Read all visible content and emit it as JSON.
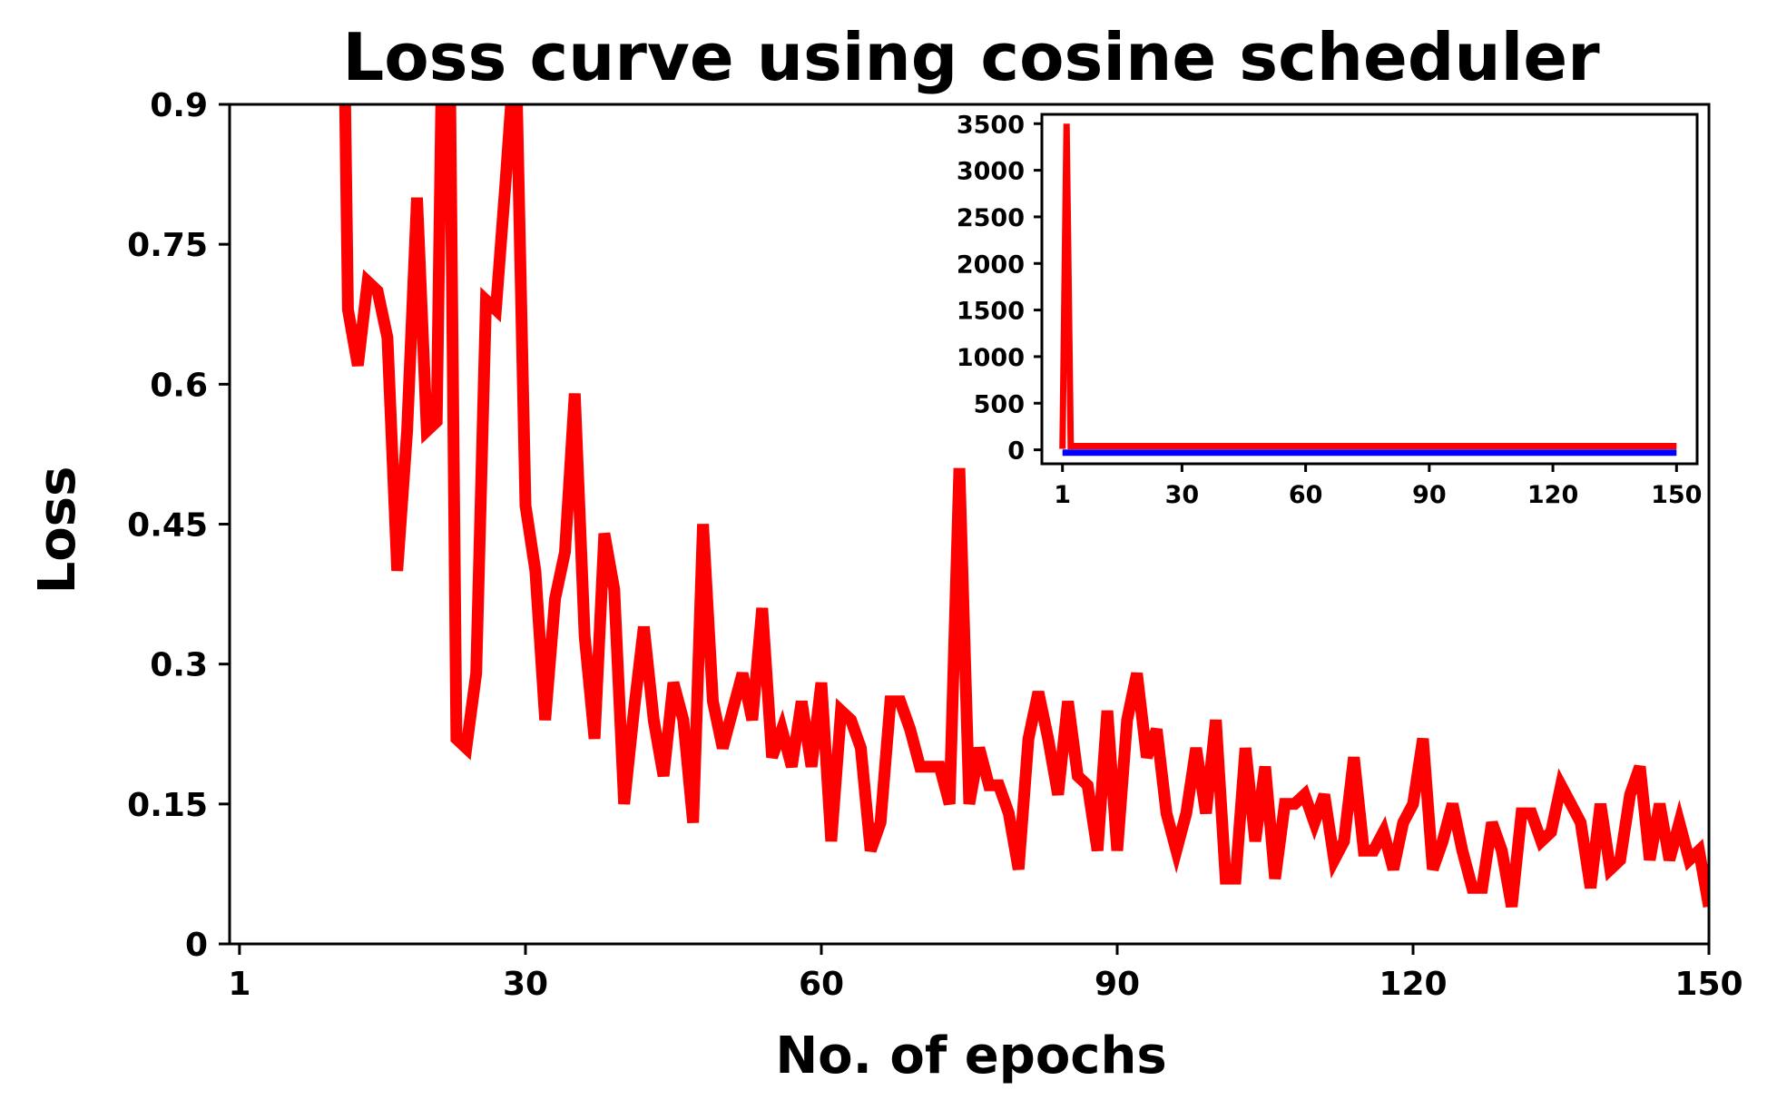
{
  "chart_data": [
    {
      "type": "line",
      "title": "Loss curve using cosine scheduler",
      "xlabel": "No. of epochs",
      "ylabel": "Loss",
      "xlim": [
        0,
        150
      ],
      "ylim": [
        0,
        0.9
      ],
      "xticks": [
        1,
        30,
        60,
        90,
        120,
        150
      ],
      "xtick_labels": [
        "1",
        "30",
        "60",
        "90",
        "120",
        "150"
      ],
      "yticks": [
        0,
        0.15,
        0.3,
        0.45,
        0.6,
        0.75,
        0.9
      ],
      "ytick_labels": [
        "0",
        "0.15",
        "0.3",
        "0.45",
        "0.6",
        "0.75",
        "0.9"
      ],
      "grid": false,
      "series": [
        {
          "color": "#ff0000",
          "x": [
            11,
            12,
            13,
            14,
            15,
            16,
            17,
            18,
            19,
            20,
            21,
            22,
            23,
            24,
            25,
            26,
            27,
            28,
            29,
            30,
            31,
            32,
            33,
            34,
            35,
            36,
            37,
            38,
            39,
            40,
            41,
            42,
            43,
            44,
            45,
            46,
            47,
            48,
            49,
            50,
            51,
            52,
            53,
            54,
            55,
            56,
            57,
            58,
            59,
            60,
            61,
            62,
            63,
            64,
            65,
            66,
            67,
            68,
            69,
            70,
            71,
            72,
            73,
            74,
            75,
            76,
            77,
            78,
            79,
            80,
            81,
            82,
            83,
            84,
            85,
            86,
            87,
            88,
            89,
            90,
            91,
            92,
            93,
            94,
            95,
            96,
            97,
            98,
            99,
            100,
            101,
            102,
            103,
            104,
            105,
            106,
            107,
            108,
            109,
            110,
            111,
            112,
            113,
            114,
            115,
            116,
            117,
            118,
            119,
            120,
            121,
            122,
            123,
            124,
            125,
            126,
            127,
            128,
            129,
            130,
            131,
            132,
            133,
            134,
            135,
            136,
            137,
            138,
            139,
            140,
            141,
            142,
            143,
            144,
            145,
            146,
            147,
            148,
            149,
            150
          ],
          "y": [
            1.45,
            0.68,
            0.62,
            0.71,
            0.7,
            0.65,
            0.4,
            0.55,
            0.8,
            0.55,
            0.56,
            1.3,
            0.22,
            0.21,
            0.29,
            0.69,
            0.68,
            0.82,
            0.97,
            0.47,
            0.4,
            0.24,
            0.37,
            0.42,
            0.59,
            0.33,
            0.22,
            0.44,
            0.38,
            0.15,
            0.25,
            0.34,
            0.24,
            0.18,
            0.28,
            0.24,
            0.13,
            0.45,
            0.26,
            0.21,
            0.25,
            0.29,
            0.24,
            0.36,
            0.2,
            0.23,
            0.19,
            0.26,
            0.19,
            0.28,
            0.11,
            0.25,
            0.24,
            0.21,
            0.1,
            0.13,
            0.26,
            0.26,
            0.23,
            0.19,
            0.19,
            0.19,
            0.15,
            0.51,
            0.15,
            0.21,
            0.17,
            0.17,
            0.14,
            0.08,
            0.22,
            0.27,
            0.22,
            0.16,
            0.26,
            0.18,
            0.17,
            0.1,
            0.25,
            0.1,
            0.24,
            0.29,
            0.2,
            0.23,
            0.14,
            0.1,
            0.14,
            0.21,
            0.14,
            0.24,
            0.07,
            0.07,
            0.21,
            0.11,
            0.19,
            0.07,
            0.15,
            0.15,
            0.16,
            0.13,
            0.16,
            0.09,
            0.11,
            0.2,
            0.1,
            0.1,
            0.12,
            0.08,
            0.13,
            0.15,
            0.22,
            0.08,
            0.11,
            0.15,
            0.1,
            0.06,
            0.06,
            0.13,
            0.1,
            0.04,
            0.14,
            0.14,
            0.11,
            0.12,
            0.17,
            0.15,
            0.13,
            0.06,
            0.15,
            0.08,
            0.09,
            0.16,
            0.19,
            0.09,
            0.15,
            0.09,
            0.13,
            0.09,
            0.1,
            0.04
          ]
        }
      ]
    },
    {
      "type": "line",
      "title": "",
      "xlabel": "",
      "ylabel": "",
      "xlim": [
        -4,
        155
      ],
      "ylim": [
        -150,
        3600
      ],
      "xticks": [
        1,
        30,
        60,
        90,
        120,
        150
      ],
      "xtick_labels": [
        "1",
        "30",
        "60",
        "90",
        "120",
        "150"
      ],
      "yticks": [
        0,
        500,
        1000,
        1500,
        2000,
        2500,
        3000,
        3500
      ],
      "ytick_labels": [
        "0",
        "500",
        "1000",
        "1500",
        "2000",
        "2500",
        "3000",
        "3500"
      ],
      "grid": false,
      "series": [
        {
          "color": "#0000ff",
          "x": [
            1,
            150
          ],
          "y": [
            -30,
            -30
          ]
        },
        {
          "color": "#ff0000",
          "x": [
            1,
            2,
            3,
            150
          ],
          "y": [
            10,
            3500,
            40,
            40
          ]
        }
      ]
    }
  ]
}
